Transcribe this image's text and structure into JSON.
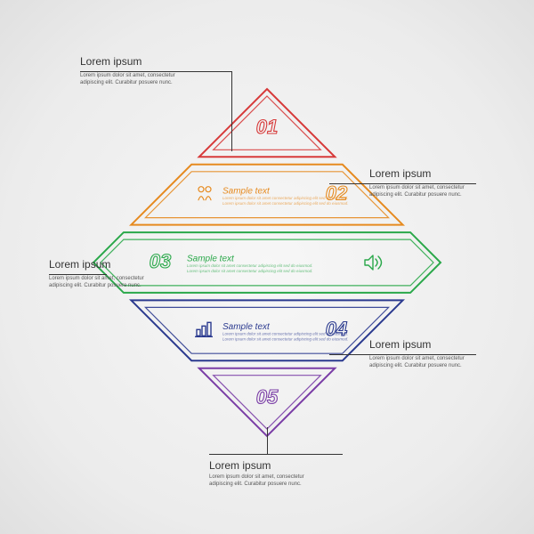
{
  "infographic": {
    "type": "infographic",
    "shape": "rhombus-outline-5-bands",
    "background_gradient": [
      "#f7f7f7",
      "#ececec",
      "#e0e0e0"
    ],
    "stroke_width_outer": 2,
    "stroke_width_inner": 1.2,
    "band_gap": 8,
    "inner_inset": 8,
    "bands": [
      {
        "id": "01",
        "color": "#d73a3a",
        "number": "01"
      },
      {
        "id": "02",
        "color": "#e68a1f",
        "number": "02",
        "sample": "Sample text",
        "icon": "people-icon"
      },
      {
        "id": "03",
        "color": "#2aa84a",
        "number": "03",
        "sample": "Sample text",
        "icon": "speaker-icon"
      },
      {
        "id": "04",
        "color": "#2b3a8f",
        "number": "04",
        "sample": "Sample text",
        "icon": "bars-icon"
      },
      {
        "id": "05",
        "color": "#7a3da6",
        "number": "05"
      }
    ],
    "number_fontsize": 22
  },
  "callouts": {
    "c1": {
      "title": "Lorem ipsum",
      "body": "Lorem ipsum dolor sit amet, consectetur adipiscing elit. Curabitur posuere nunc."
    },
    "c2": {
      "title": "Lorem ipsum",
      "body": "Lorem ipsum dolor sit amet, consectetur adipiscing elit. Curabitur posuere nunc."
    },
    "c3": {
      "title": "Lorem ipsum",
      "body": "Lorem ipsum dolor sit amet, consectetur adipiscing elit. Curabitur posuere nunc."
    },
    "c4": {
      "title": "Lorem ipsum",
      "body": "Lorem ipsum dolor sit amet, consectetur adipiscing elit. Curabitur posuere nunc."
    },
    "c5": {
      "title": "Lorem ipsum",
      "body": "Lorem ipsum dolor sit amet, consectetur adipiscing elit. Curabitur posuere nunc."
    }
  },
  "sample_filler": "Lorem ipsum dolor sit amet consectetur adipiscing elit sed do eiusmod."
}
